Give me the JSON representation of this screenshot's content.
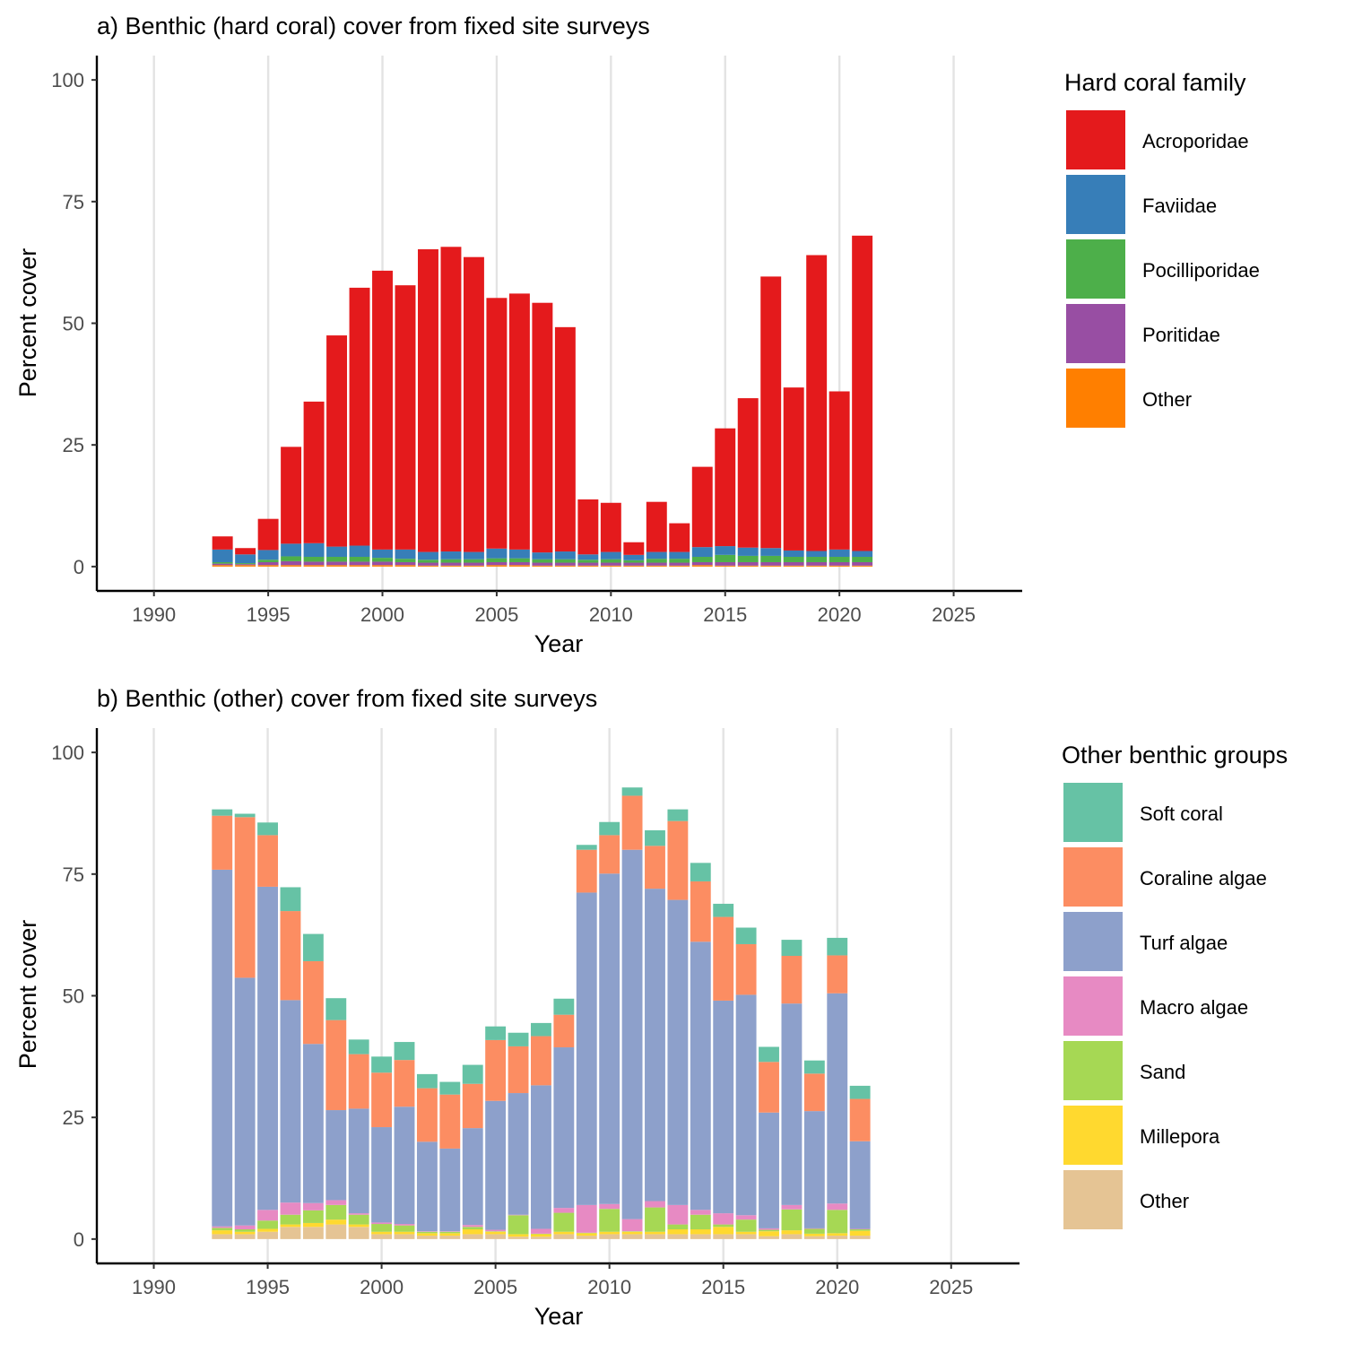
{
  "chart_data": [
    {
      "type": "bar",
      "stacked": true,
      "title": "a) Benthic (hard coral) cover from fixed site surveys",
      "xlabel": "Year",
      "ylabel": "Percent cover",
      "xlim": [
        1987.5,
        2028
      ],
      "ylim": [
        -5,
        105
      ],
      "xticks": [
        1990,
        1995,
        2000,
        2005,
        2010,
        2015,
        2020,
        2025
      ],
      "yticks": [
        0,
        25,
        50,
        75,
        100
      ],
      "grid": "vertical major",
      "legend_title": "Hard coral family",
      "legend_position": "right",
      "x": [
        1993,
        1994,
        1995,
        1996,
        1997,
        1998,
        1999,
        2000,
        2001,
        2002,
        2003,
        2004,
        2005,
        2006,
        2007,
        2008,
        2009,
        2010,
        2011,
        2012,
        2013,
        2014,
        2015,
        2016,
        2017,
        2018,
        2019,
        2020,
        2021
      ],
      "series": [
        {
          "name": "Other",
          "color": "#FF7F00",
          "values": [
            0.3,
            0.3,
            0.3,
            0.3,
            0.3,
            0.3,
            0.3,
            0.3,
            0.3,
            0.2,
            0.2,
            0.2,
            0.3,
            0.3,
            0.2,
            0.2,
            0.2,
            0.2,
            0.2,
            0.2,
            0.2,
            0.3,
            0.2,
            0.2,
            0.2,
            0.2,
            0.2,
            0.2,
            0.2
          ]
        },
        {
          "name": "Poritidae",
          "color": "#984EA3",
          "values": [
            0.3,
            0.2,
            0.6,
            0.8,
            0.7,
            0.7,
            0.7,
            0.7,
            0.6,
            0.6,
            0.6,
            0.6,
            0.6,
            0.6,
            0.6,
            0.6,
            0.6,
            0.6,
            0.6,
            0.6,
            0.6,
            0.6,
            0.7,
            0.7,
            0.7,
            0.7,
            0.7,
            0.7,
            0.7
          ]
        },
        {
          "name": "Pocilliporidae",
          "color": "#4DAF4A",
          "values": [
            0.3,
            0.2,
            0.5,
            1.0,
            1.0,
            1.0,
            1.0,
            0.8,
            0.7,
            0.6,
            0.7,
            0.7,
            0.8,
            0.8,
            0.7,
            0.7,
            0.6,
            0.7,
            0.5,
            0.8,
            0.8,
            1.1,
            1.5,
            1.3,
            1.3,
            1.1,
            1.1,
            1.1,
            1.1
          ]
        },
        {
          "name": "Faviidae",
          "color": "#377EB8",
          "values": [
            2.6,
            1.8,
            2.0,
            2.6,
            2.8,
            2.1,
            2.3,
            1.7,
            1.9,
            1.6,
            1.6,
            1.5,
            2.0,
            1.8,
            1.4,
            1.6,
            1.1,
            1.5,
            1.1,
            1.4,
            1.4,
            2.0,
            1.8,
            1.7,
            1.6,
            1.3,
            1.2,
            1.5,
            1.2
          ]
        },
        {
          "name": "Acroporidae",
          "color": "#E41A1C",
          "values": [
            2.7,
            1.3,
            6.4,
            19.9,
            29.1,
            43.4,
            53.0,
            57.3,
            54.3,
            62.2,
            62.6,
            60.6,
            51.5,
            52.6,
            51.3,
            46.1,
            11.3,
            10.1,
            2.6,
            10.3,
            5.9,
            16.5,
            24.2,
            30.7,
            55.8,
            33.5,
            60.8,
            32.5,
            64.8
          ]
        }
      ]
    },
    {
      "type": "bar",
      "stacked": true,
      "title": "b) Benthic (other) cover from fixed site surveys",
      "xlabel": "Year",
      "ylabel": "Percent cover",
      "xlim": [
        1987.5,
        2028
      ],
      "ylim": [
        -5,
        105
      ],
      "xticks": [
        1990,
        1995,
        2000,
        2005,
        2010,
        2015,
        2020,
        2025
      ],
      "yticks": [
        0,
        25,
        50,
        75,
        100
      ],
      "grid": "vertical major",
      "legend_title": "Other benthic groups",
      "legend_position": "right",
      "x": [
        1993,
        1994,
        1995,
        1996,
        1997,
        1998,
        1999,
        2000,
        2001,
        2002,
        2003,
        2004,
        2005,
        2006,
        2007,
        2008,
        2009,
        2010,
        2011,
        2012,
        2013,
        2014,
        2015,
        2016,
        2017,
        2018,
        2019,
        2020,
        2021
      ],
      "series": [
        {
          "name": "Other",
          "color": "#E5C494",
          "values": [
            1.0,
            1.0,
            1.5,
            2.5,
            2.5,
            3.0,
            2.5,
            1.0,
            1.0,
            0.7,
            0.7,
            1.0,
            1.0,
            0.5,
            0.5,
            1.0,
            0.7,
            1.0,
            1.0,
            1.0,
            1.0,
            1.0,
            1.0,
            1.0,
            0.6,
            1.0,
            0.6,
            0.7,
            0.7
          ]
        },
        {
          "name": "Millepora",
          "color": "#FFD92F",
          "values": [
            0.8,
            0.5,
            0.6,
            0.5,
            0.8,
            1.0,
            0.5,
            0.5,
            0.5,
            0.5,
            0.5,
            1.0,
            0.5,
            0.5,
            0.5,
            0.5,
            0.5,
            0.5,
            0.5,
            0.5,
            1.0,
            1.0,
            1.5,
            0.5,
            1.0,
            0.8,
            0.5,
            0.5,
            1.0
          ]
        },
        {
          "name": "Sand",
          "color": "#A6D854",
          "values": [
            0.5,
            0.5,
            1.7,
            2.0,
            2.6,
            3.0,
            2.0,
            1.6,
            1.3,
            0.3,
            0.3,
            0.5,
            0.1,
            3.9,
            0.1,
            3.9,
            0.1,
            4.7,
            0.1,
            5.0,
            1.0,
            3.0,
            0.5,
            2.5,
            0.3,
            4.3,
            1.0,
            4.8,
            0.3
          ]
        },
        {
          "name": "Macro algae",
          "color": "#E78AC3",
          "values": [
            0.3,
            0.8,
            2.2,
            2.5,
            1.5,
            1.0,
            0.3,
            0.3,
            0.3,
            0.1,
            0.1,
            0.4,
            0.3,
            0.1,
            1.0,
            1.0,
            5.7,
            1.0,
            2.5,
            1.3,
            4.0,
            1.0,
            2.3,
            0.9,
            0.3,
            0.9,
            0.1,
            1.3,
            0.1
          ]
        },
        {
          "name": "Turf algae",
          "color": "#8DA0CB",
          "values": [
            73.3,
            50.9,
            66.4,
            41.6,
            32.7,
            18.5,
            21.5,
            19.6,
            24.1,
            18.4,
            17.0,
            19.9,
            26.5,
            25.0,
            29.5,
            33.0,
            64.2,
            67.9,
            75.9,
            64.2,
            62.7,
            55.1,
            43.7,
            45.3,
            23.8,
            41.4,
            24.1,
            43.2,
            18.0
          ]
        },
        {
          "name": "Coraline algae",
          "color": "#FC8D62",
          "values": [
            11.1,
            33.0,
            10.6,
            18.3,
            17.0,
            18.5,
            11.2,
            11.2,
            9.6,
            11.0,
            11.1,
            9.1,
            12.5,
            9.6,
            10.1,
            6.7,
            8.8,
            7.9,
            11.1,
            8.8,
            16.2,
            12.4,
            17.2,
            10.4,
            10.4,
            9.8,
            7.7,
            7.8,
            8.7
          ]
        },
        {
          "name": "Soft coral",
          "color": "#66C2A5",
          "values": [
            1.3,
            0.7,
            2.6,
            4.9,
            5.6,
            4.5,
            3.0,
            3.3,
            3.7,
            2.9,
            2.6,
            3.9,
            2.8,
            2.8,
            2.7,
            3.3,
            1.0,
            2.7,
            1.7,
            3.2,
            2.4,
            3.8,
            2.7,
            3.4,
            3.1,
            3.3,
            2.7,
            3.6,
            2.7
          ]
        }
      ]
    }
  ]
}
